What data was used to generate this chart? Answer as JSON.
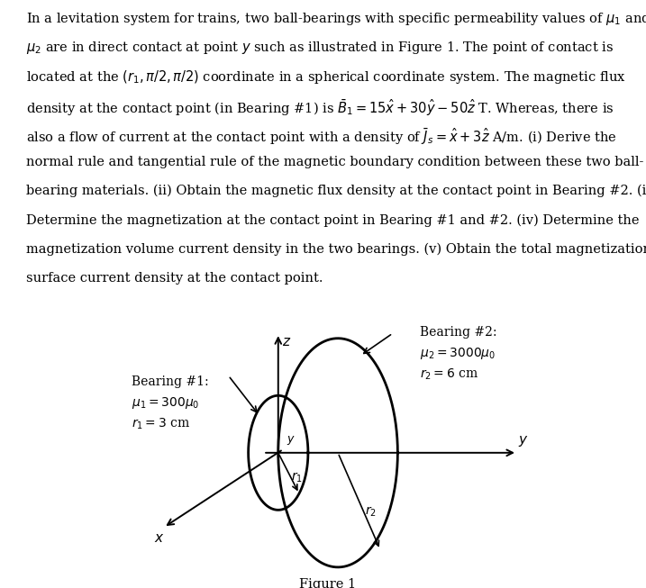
{
  "background_color": "#ffffff",
  "figure_caption": "Figure 1",
  "bearing1_line1": "Bearing #1:",
  "bearing1_line2": "$\\mu_1 = 300\\mu_0$",
  "bearing1_line3": "$r_1 = 3$ cm",
  "bearing2_line1": "Bearing #2:",
  "bearing2_line2": "$\\mu_2 = 3000\\mu_0$",
  "bearing2_line3": "$r_2 = 6$ cm",
  "circle_color": "#000000",
  "circle_lw": 2.0,
  "axis_lw": 1.4,
  "arrow_lw": 1.2,
  "text_fontsize": 10.5,
  "label_fontsize": 10.0,
  "diagram_xlim": [
    -3.2,
    5.0
  ],
  "diagram_ylim": [
    -2.6,
    2.6
  ]
}
